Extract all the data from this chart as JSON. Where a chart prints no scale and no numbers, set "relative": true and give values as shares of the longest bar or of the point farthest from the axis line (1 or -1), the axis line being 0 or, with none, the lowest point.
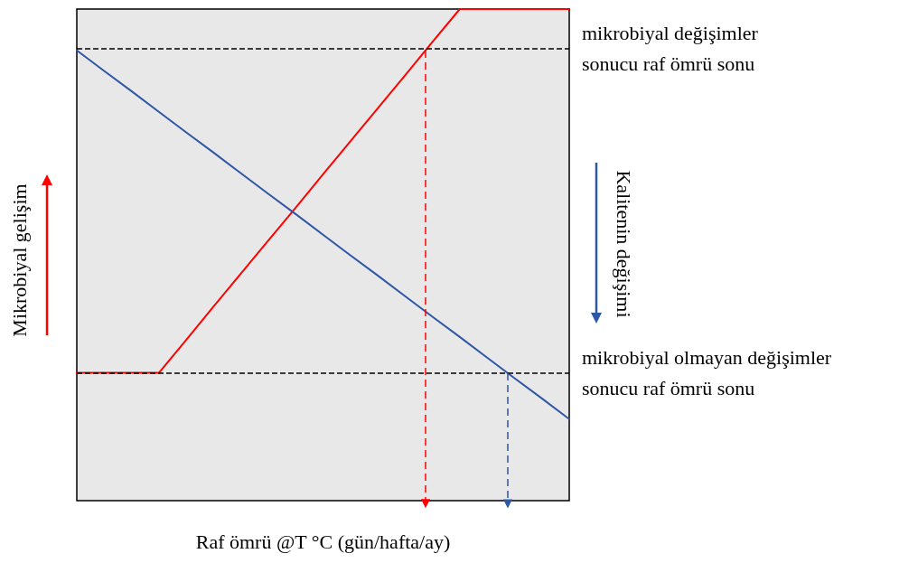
{
  "chart_data": {
    "type": "line",
    "relative": true,
    "xlabel": "Raf ömrü @T °C (gün/hafta/ay)",
    "ylabel": "Mikrobiyal gelişim",
    "y2label": "Kalitenin değişimi",
    "categories": [
      null,
      null,
      null,
      null,
      null,
      null,
      null,
      null,
      null,
      null,
      null,
      null,
      null,
      null,
      null,
      null,
      null,
      null,
      null
    ],
    "grid": false,
    "marker": "none",
    "line_style": "solid",
    "series": [
      {
        "color": "#ff0000",
        "values": [
          0.26,
          0.26,
          0.26,
          0.26,
          0.327,
          0.395,
          0.462,
          0.529,
          0.596,
          0.664,
          0.731,
          0.798,
          0.865,
          0.933,
          1,
          1,
          1,
          1,
          1
        ]
      },
      {
        "color": "#2e56a6",
        "values": [
          0.916,
          0.874,
          0.833,
          0.791,
          0.749,
          0.708,
          0.666,
          0.624,
          0.583,
          0.541,
          0.499,
          0.458,
          0.416,
          0.374,
          0.333,
          0.291,
          0.249,
          0.208,
          0.166
        ]
      }
    ],
    "ref_lines": [
      {
        "axis": "y",
        "value": 0.916,
        "label": "mikrobiyal değişimler\nsonucu raf ömrü sonu",
        "color": "#000000",
        "line_style": "dashed"
      },
      {
        "axis": "y",
        "value": 0.26,
        "label": "mikrobiyal olmayan değişimler\nsonucu raf ömrü sonu",
        "color": "#000000",
        "line_style": "dashed"
      }
    ]
  }
}
